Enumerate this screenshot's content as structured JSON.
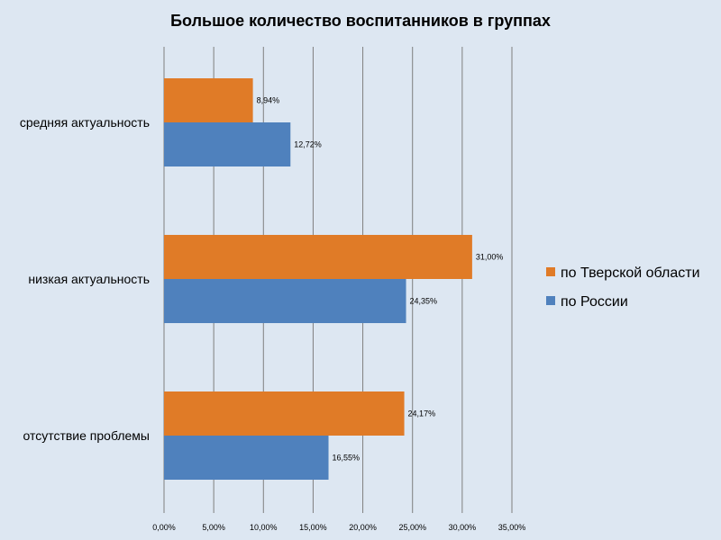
{
  "chart_data": {
    "type": "bar",
    "orientation": "horizontal",
    "title": "Большое количество воспитанников в группах",
    "categories": [
      "средняя актуальность",
      "низкая актуальность",
      "отсутствие проблемы"
    ],
    "series": [
      {
        "name": "по Тверской области",
        "color": "#e07b27",
        "values": [
          8.94,
          31.0,
          24.17
        ],
        "labels": [
          "8,94%",
          "31,00%",
          "24,17%"
        ]
      },
      {
        "name": "по России",
        "color": "#4f81bd",
        "values": [
          12.72,
          24.35,
          16.55
        ],
        "labels": [
          "12,72%",
          "24,35%",
          "16,55%"
        ]
      }
    ],
    "xlim": [
      0,
      35
    ],
    "xticks": [
      0,
      5,
      10,
      15,
      20,
      25,
      30,
      35
    ],
    "xtick_labels": [
      "0,00%",
      "5,00%",
      "10,00%",
      "15,00%",
      "20,00%",
      "25,00%",
      "30,00%",
      "35,00%"
    ],
    "grid": true,
    "legend_position": "right",
    "background": "#dde7f2",
    "gridline_color": "#7f7f7f"
  }
}
